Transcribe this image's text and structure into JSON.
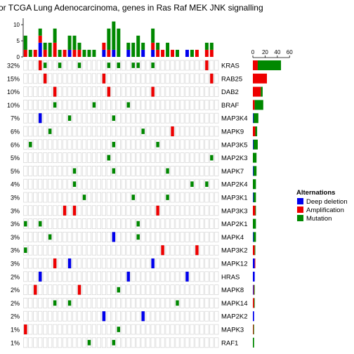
{
  "title": "or TCGA Lung Adenocarcinoma, genes in Ras Raf MEK JNK signalling",
  "chart_data": {
    "type": "oncoprint",
    "colors": {
      "deep_deletion": "#0000ee",
      "amplification": "#ee0000",
      "mutation": "#008800",
      "empty_cell": "#d9d9d9"
    },
    "top_barplot": {
      "yticks": [
        0,
        5,
        10
      ],
      "ylim": [
        0,
        12
      ]
    },
    "side_barplot": {
      "xticks": [
        0,
        20,
        40,
        60
      ],
      "xlim": [
        0,
        62
      ]
    },
    "genes": [
      {
        "name": "KRAS",
        "pct": "32%",
        "mutation": 38,
        "amplification": 8,
        "deletion": 0
      },
      {
        "name": "RAB25",
        "pct": "15%",
        "mutation": 0,
        "amplification": 23,
        "deletion": 0
      },
      {
        "name": "DAB2",
        "pct": "10%",
        "mutation": 3,
        "amplification": 13,
        "deletion": 0
      },
      {
        "name": "BRAF",
        "pct": "10%",
        "mutation": 14,
        "amplification": 3,
        "deletion": 0
      },
      {
        "name": "MAP3K4",
        "pct": "7%",
        "mutation": 8,
        "amplification": 0,
        "deletion": 1
      },
      {
        "name": "MAPK9",
        "pct": "6%",
        "mutation": 3,
        "amplification": 4,
        "deletion": 0
      },
      {
        "name": "MAP3K5",
        "pct": "6%",
        "mutation": 7,
        "amplification": 0,
        "deletion": 1
      },
      {
        "name": "MAP2K3",
        "pct": "5%",
        "mutation": 6,
        "amplification": 0,
        "deletion": 0
      },
      {
        "name": "MAPK7",
        "pct": "5%",
        "mutation": 5,
        "amplification": 0,
        "deletion": 1
      },
      {
        "name": "MAP2K4",
        "pct": "4%",
        "mutation": 5,
        "amplification": 0,
        "deletion": 0
      },
      {
        "name": "MAP3K1",
        "pct": "3%",
        "mutation": 4,
        "amplification": 0,
        "deletion": 1
      },
      {
        "name": "MAP3K3",
        "pct": "3%",
        "mutation": 1,
        "amplification": 4,
        "deletion": 0
      },
      {
        "name": "MAP2K1",
        "pct": "3%",
        "mutation": 5,
        "amplification": 0,
        "deletion": 0
      },
      {
        "name": "MAPK4",
        "pct": "3%",
        "mutation": 4,
        "amplification": 0,
        "deletion": 1
      },
      {
        "name": "MAP3K2",
        "pct": "3%",
        "mutation": 1,
        "amplification": 3,
        "deletion": 0
      },
      {
        "name": "MAPK12",
        "pct": "3%",
        "mutation": 0,
        "amplification": 1,
        "deletion": 3
      },
      {
        "name": "HRAS",
        "pct": "2%",
        "mutation": 0,
        "amplification": 0,
        "deletion": 3
      },
      {
        "name": "MAPK8",
        "pct": "2%",
        "mutation": 1,
        "amplification": 1,
        "deletion": 1
      },
      {
        "name": "MAPK14",
        "pct": "2%",
        "mutation": 1,
        "amplification": 2,
        "deletion": 0
      },
      {
        "name": "MAP2K2",
        "pct": "2%",
        "mutation": 0,
        "amplification": 0,
        "deletion": 2
      },
      {
        "name": "MAPK3",
        "pct": "1%",
        "mutation": 1,
        "amplification": 1,
        "deletion": 0
      },
      {
        "name": "RAF1",
        "pct": "1%",
        "mutation": 2,
        "amplification": 0,
        "deletion": 0
      }
    ],
    "legend": {
      "title": "Alternations",
      "items": [
        {
          "label": "Deep deletion",
          "color": "#0000ee"
        },
        {
          "label": "Amplification",
          "color": "#ee0000"
        },
        {
          "label": "Mutation",
          "color": "#008800"
        }
      ]
    }
  }
}
